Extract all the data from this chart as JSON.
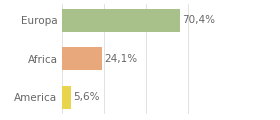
{
  "categories": [
    "America",
    "Africa",
    "Europa"
  ],
  "values": [
    5.6,
    24.1,
    70.4
  ],
  "colors": [
    "#e8d44d",
    "#e8a87c",
    "#a8c08a"
  ],
  "labels": [
    "5,6%",
    "24,1%",
    "70,4%"
  ],
  "background_color": "#ffffff",
  "bar_height": 0.6,
  "xlim": [
    0,
    100
  ],
  "label_fontsize": 7.5,
  "tick_fontsize": 7.5,
  "label_color": "#666666",
  "tick_color": "#666666"
}
